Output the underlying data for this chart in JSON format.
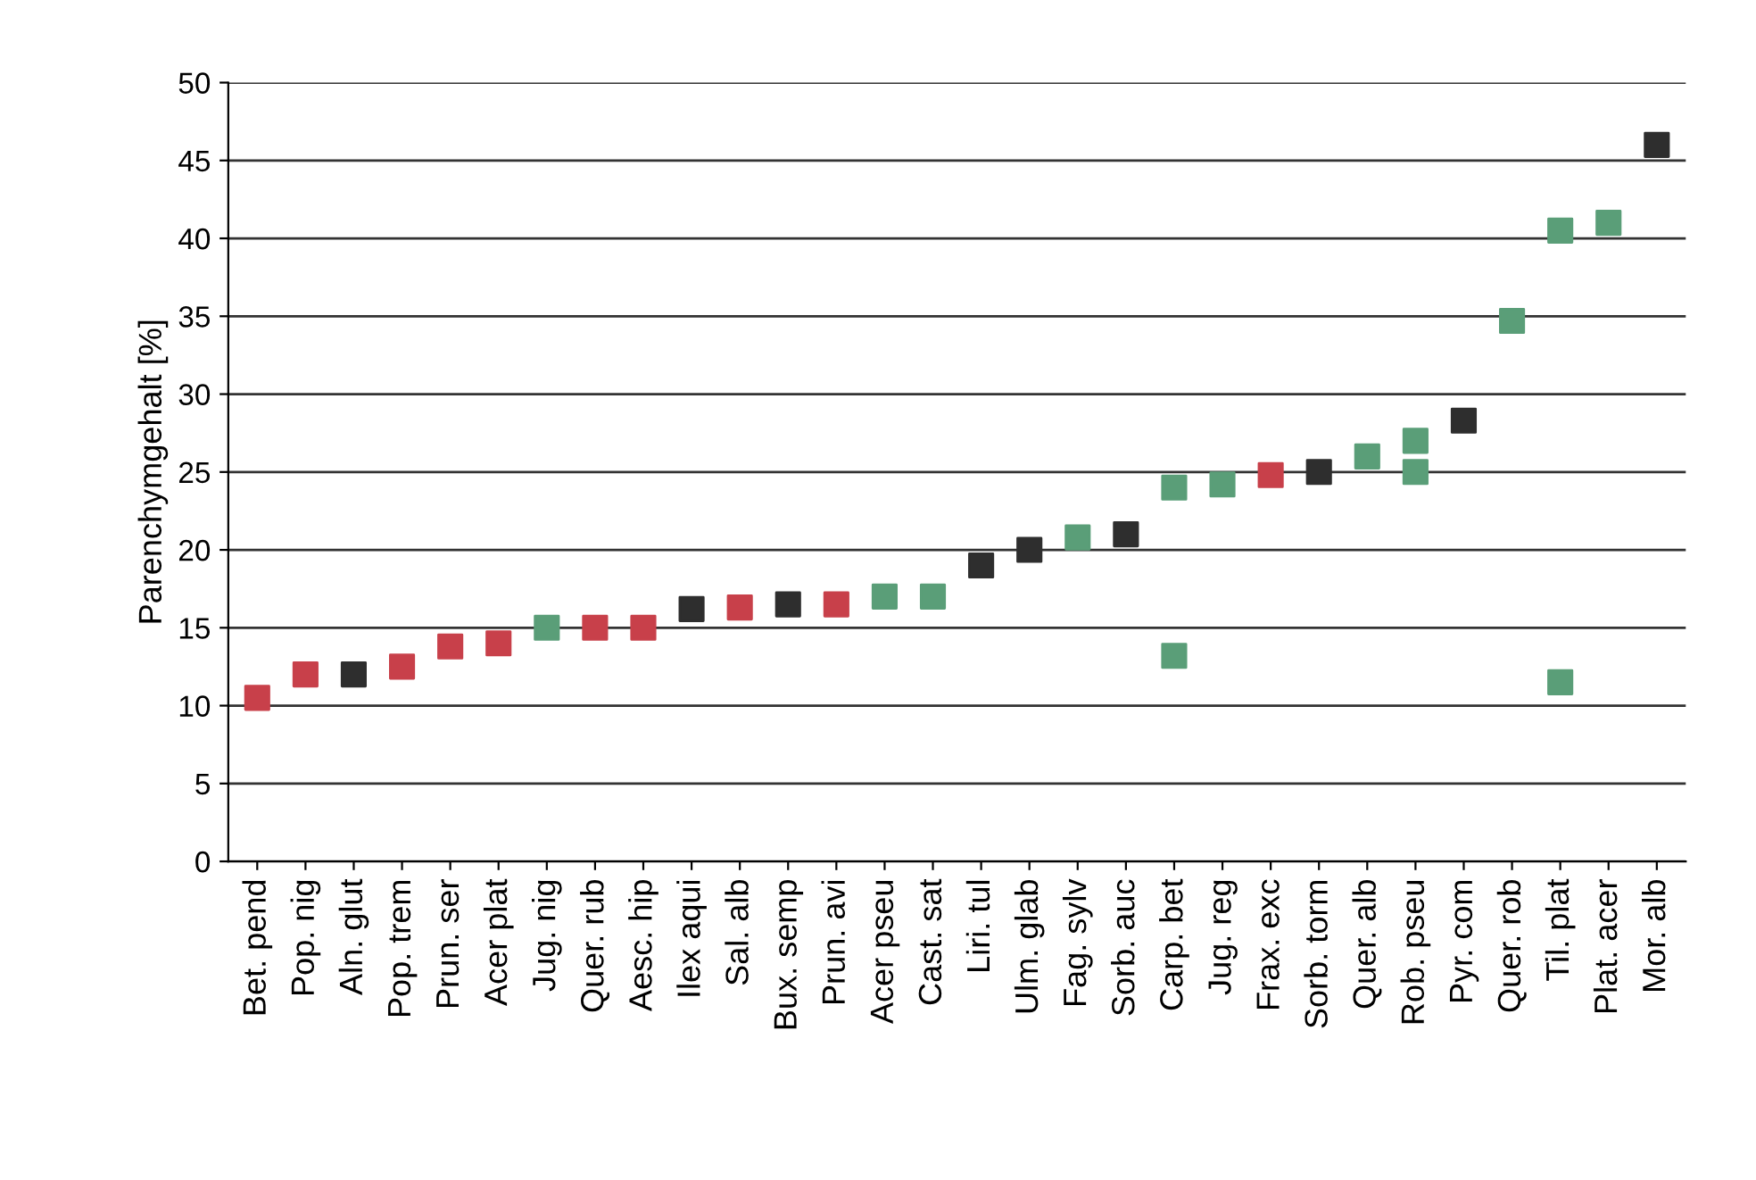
{
  "chart_data": {
    "type": "scatter",
    "ylabel": "Parenchymgehalt [%]",
    "categories": [
      "Bet. pend",
      "Pop. nig",
      "Aln. glut",
      "Pop. trem",
      "Prun. ser",
      "Acer plat",
      "Jug. nig",
      "Quer. rub",
      "Aesc. hip",
      "Ilex aqui",
      "Sal. alb",
      "Bux. semp",
      "Prun. avi",
      "Acer pseu",
      "Cast. sat",
      "Liri. tul",
      "Ulm. glab",
      "Fag. sylv",
      "Sorb. auc",
      "Carp. bet",
      "Jug. reg",
      "Frax. exc",
      "Sorb. torm",
      "Quer. alb",
      "Rob. pseu",
      "Pyr. com",
      "Quer. rob",
      "Til. plat",
      "Plat. acer",
      "Mor. alb"
    ],
    "series": [
      {
        "values": [
          10.5,
          12,
          12,
          12.5,
          13.8,
          14,
          15,
          15,
          15,
          16.2,
          16.3,
          16.5,
          16.5,
          17,
          17,
          19,
          20,
          20.8,
          21,
          24,
          24.2,
          24.8,
          25,
          26,
          27,
          28.3,
          34.7,
          40.5,
          41,
          46
        ],
        "colors": [
          "#c8404a",
          "#c8404a",
          "#2e2e2e",
          "#c8404a",
          "#c8404a",
          "#c8404a",
          "#5a9e78",
          "#c8404a",
          "#c8404a",
          "#2e2e2e",
          "#c8404a",
          "#2e2e2e",
          "#c8404a",
          "#5a9e78",
          "#5a9e78",
          "#2e2e2e",
          "#2e2e2e",
          "#5a9e78",
          "#2e2e2e",
          "#5a9e78",
          "#5a9e78",
          "#c8404a",
          "#2e2e2e",
          "#5a9e78",
          "#5a9e78",
          "#2e2e2e",
          "#5a9e78",
          "#5a9e78",
          "#5a9e78",
          "#2e2e2e"
        ]
      },
      {
        "values": [
          null,
          null,
          null,
          null,
          null,
          null,
          null,
          null,
          null,
          null,
          null,
          null,
          null,
          null,
          null,
          null,
          null,
          null,
          null,
          13.2,
          null,
          null,
          null,
          null,
          25,
          null,
          null,
          11.5,
          null,
          null
        ],
        "color": "#5a9e78"
      }
    ],
    "ylim": [
      0,
      50
    ],
    "yticks": [
      0,
      5,
      10,
      15,
      20,
      25,
      30,
      35,
      40,
      45,
      50
    ],
    "grid": "y",
    "marker": "square"
  }
}
